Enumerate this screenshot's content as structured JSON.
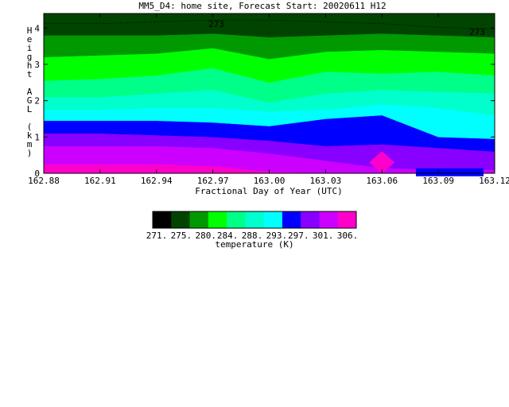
{
  "chart_data": {
    "type": "heatmap",
    "title": "MM5_D4: home site,  Forecast Start: 20020611 H12",
    "xlabel": "Fractional Day of Year (UTC)",
    "ylabel": "Height AGL (km)",
    "xlim": [
      162.88,
      163.12
    ],
    "ylim": [
      0,
      4.4
    ],
    "x_ticks": [
      "162.88",
      "162.91",
      "162.94",
      "162.97",
      "163.00",
      "163.03",
      "163.06",
      "163.09",
      "163.12"
    ],
    "y_ticks": [
      "0",
      "1",
      "2",
      "3",
      "4"
    ],
    "contour_annotations": [
      "273",
      "273"
    ],
    "colorbar": {
      "label": "temperature (K)",
      "tick_labels": [
        "271.",
        "275.",
        "280.",
        "284.",
        "288.",
        "293.",
        "297.",
        "301.",
        "306."
      ],
      "levels": [
        271,
        275.5,
        280,
        284,
        288.5,
        293,
        297,
        301.5,
        306
      ],
      "colors": [
        "#000000",
        "#004400",
        "#009900",
        "#00ff00",
        "#00ff88",
        "#00ffcc",
        "#00ffff",
        "#0000ff",
        "#8800ff",
        "#cc00ff",
        "#ff00cc"
      ]
    },
    "x_samples": [
      162.88,
      162.91,
      162.94,
      162.97,
      163.0,
      163.03,
      163.06,
      163.09,
      163.12
    ],
    "contour_heights_km": [
      [
        0.25,
        0.25,
        0.25,
        0.2,
        0.05,
        0.0,
        0.0,
        0.0,
        0.0
      ],
      [
        0.75,
        0.75,
        0.75,
        0.7,
        0.55,
        0.35,
        0.15,
        0.1,
        0.1
      ],
      [
        1.1,
        1.1,
        1.05,
        1.0,
        0.9,
        0.75,
        0.8,
        0.7,
        0.6
      ],
      [
        1.45,
        1.45,
        1.45,
        1.4,
        1.3,
        1.5,
        1.6,
        1.0,
        0.95
      ],
      [
        1.75,
        1.75,
        1.8,
        1.8,
        1.7,
        1.75,
        1.9,
        1.8,
        1.6
      ],
      [
        2.1,
        2.1,
        2.2,
        2.3,
        1.95,
        2.2,
        2.3,
        2.25,
        2.2
      ],
      [
        2.55,
        2.6,
        2.7,
        2.9,
        2.5,
        2.8,
        2.75,
        2.8,
        2.7
      ],
      [
        3.2,
        3.25,
        3.3,
        3.45,
        3.15,
        3.35,
        3.4,
        3.35,
        3.3
      ],
      [
        3.8,
        3.8,
        3.8,
        3.85,
        3.75,
        3.8,
        3.85,
        3.8,
        3.75
      ],
      [
        4.2,
        4.2,
        4.25,
        4.3,
        4.3,
        4.25,
        4.2,
        4.1,
        4.05
      ]
    ],
    "warm_cores": [
      {
        "x": 163.06,
        "y": 0.3,
        "level": "301."
      },
      {
        "x": 163.095,
        "y": 0.05,
        "level": "293."
      }
    ]
  }
}
